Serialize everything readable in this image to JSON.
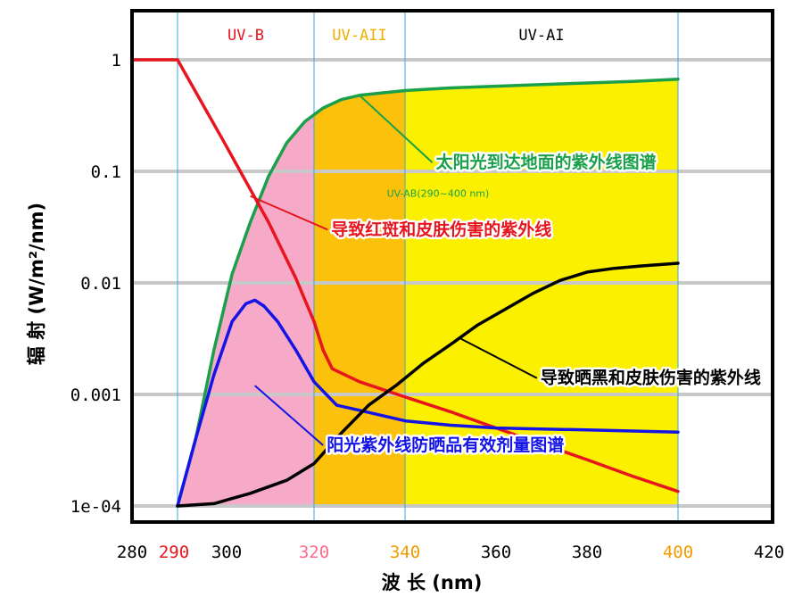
{
  "chart_data": {
    "type": "line",
    "xlabel": "波 长 (nm)",
    "ylabel": "辐 射 (W/m²/nm)",
    "xlim": [
      280,
      420
    ],
    "ylim": [
      0.0001,
      2
    ],
    "y_scale": "log",
    "grid": "horizontal",
    "x_ticks": [
      {
        "value": 280,
        "label": "280",
        "color": "#000000"
      },
      {
        "value": 290,
        "label": "290",
        "color": "#e8141e"
      },
      {
        "value": 300,
        "label": "300",
        "color": "#000000"
      },
      {
        "value": 320,
        "label": "320",
        "color": "#ff6b8a"
      },
      {
        "value": 340,
        "label": "340",
        "color": "#f29a00"
      },
      {
        "value": 360,
        "label": "360",
        "color": "#000000"
      },
      {
        "value": 380,
        "label": "380",
        "color": "#000000"
      },
      {
        "value": 400,
        "label": "400",
        "color": "#f29a00"
      },
      {
        "value": 420,
        "label": "420",
        "color": "#000000"
      }
    ],
    "y_ticks": [
      {
        "value": 1,
        "label": "1"
      },
      {
        "value": 0.1,
        "label": "0.1"
      },
      {
        "value": 0.01,
        "label": "0.01"
      },
      {
        "value": 0.001,
        "label": "0.001"
      },
      {
        "value": 0.0001,
        "label": "1e-04"
      }
    ],
    "bands": [
      {
        "label": "UV-B",
        "from": 290,
        "to": 320,
        "fill": "#f7a9c8",
        "label_color": "#e8141e"
      },
      {
        "label": "UV-AII",
        "from": 320,
        "to": 340,
        "fill": "#fcc10a",
        "label_color": "#f0b000"
      },
      {
        "label": "UV-AI",
        "from": 340,
        "to": 400,
        "fill": "#fbf000",
        "label_color": "#000000"
      }
    ],
    "series": [
      {
        "name": "太阳光到达地面的紫外线图谱",
        "color": "#1aa04a",
        "x": [
          290,
          294,
          298,
          302,
          306,
          310,
          314,
          318,
          322,
          326,
          330,
          334,
          340,
          350,
          360,
          370,
          380,
          390,
          400
        ],
        "y": [
          0.0001,
          0.0004,
          0.0025,
          0.012,
          0.035,
          0.09,
          0.18,
          0.28,
          0.37,
          0.44,
          0.48,
          0.5,
          0.53,
          0.56,
          0.58,
          0.6,
          0.62,
          0.64,
          0.67
        ]
      },
      {
        "name": "导致红斑和皮肤伤害的紫外线",
        "color": "#e8141e",
        "x": [
          280,
          290,
          300,
          310,
          316,
          320,
          322,
          324,
          330,
          340,
          350,
          360,
          370,
          380,
          390,
          400
        ],
        "y": [
          1,
          1,
          0.19,
          0.035,
          0.011,
          0.0045,
          0.0025,
          0.0017,
          0.0013,
          0.00095,
          0.0007,
          0.0005,
          0.00036,
          0.00026,
          0.000185,
          0.000135
        ]
      },
      {
        "name": "阳光紫外线防晒品有效剂量图谱",
        "color": "#1414e6",
        "x": [
          290,
          294,
          298,
          302,
          305,
          307,
          309,
          312,
          316,
          320,
          325,
          330,
          340,
          350,
          360,
          370,
          380,
          390,
          400
        ],
        "y": [
          0.0001,
          0.0004,
          0.0015,
          0.0045,
          0.0065,
          0.007,
          0.0062,
          0.0045,
          0.0025,
          0.0013,
          0.0008,
          0.00072,
          0.00058,
          0.00053,
          0.0005,
          0.00049,
          0.00048,
          0.00047,
          0.00046
        ]
      },
      {
        "name": "导致晒黑和皮肤伤害的紫外线",
        "color": "#000000",
        "x": [
          290,
          298,
          306,
          314,
          320,
          326,
          332,
          338,
          344,
          350,
          356,
          362,
          368,
          374,
          380,
          386,
          392,
          400
        ],
        "y": [
          0.0001,
          0.000105,
          0.00013,
          0.00017,
          0.00024,
          0.00045,
          0.0008,
          0.0012,
          0.0019,
          0.0028,
          0.0042,
          0.0058,
          0.008,
          0.0105,
          0.0125,
          0.0135,
          0.0142,
          0.015
        ]
      }
    ],
    "callouts": [
      {
        "text": "太阳光到达地面的紫外线图谱",
        "series": 0,
        "at": [
          330,
          0.48
        ],
        "text_at": [
          346,
          0.12
        ],
        "color": "#1aa04a"
      },
      {
        "text": "导致红斑和皮肤伤害的紫外线",
        "series": 1,
        "at": [
          306,
          0.06
        ],
        "text_at": [
          323,
          0.03
        ],
        "color": "#e8141e"
      },
      {
        "text": "导致晒黑和皮肤伤害的紫外线",
        "series": 3,
        "at": [
          352,
          0.0032
        ],
        "text_at": [
          369,
          0.0014
        ],
        "color": "#000000"
      },
      {
        "text": "阳光紫外线防晒品有效剂量图谱",
        "series": 2,
        "at": [
          307,
          0.0012
        ],
        "text_at": [
          322,
          0.00035
        ],
        "color": "#1414e6"
      }
    ],
    "annotation": {
      "text": "UV-AB(290~400 nm)",
      "at": [
        336,
        0.065
      ],
      "color": "#1aa04a"
    }
  }
}
